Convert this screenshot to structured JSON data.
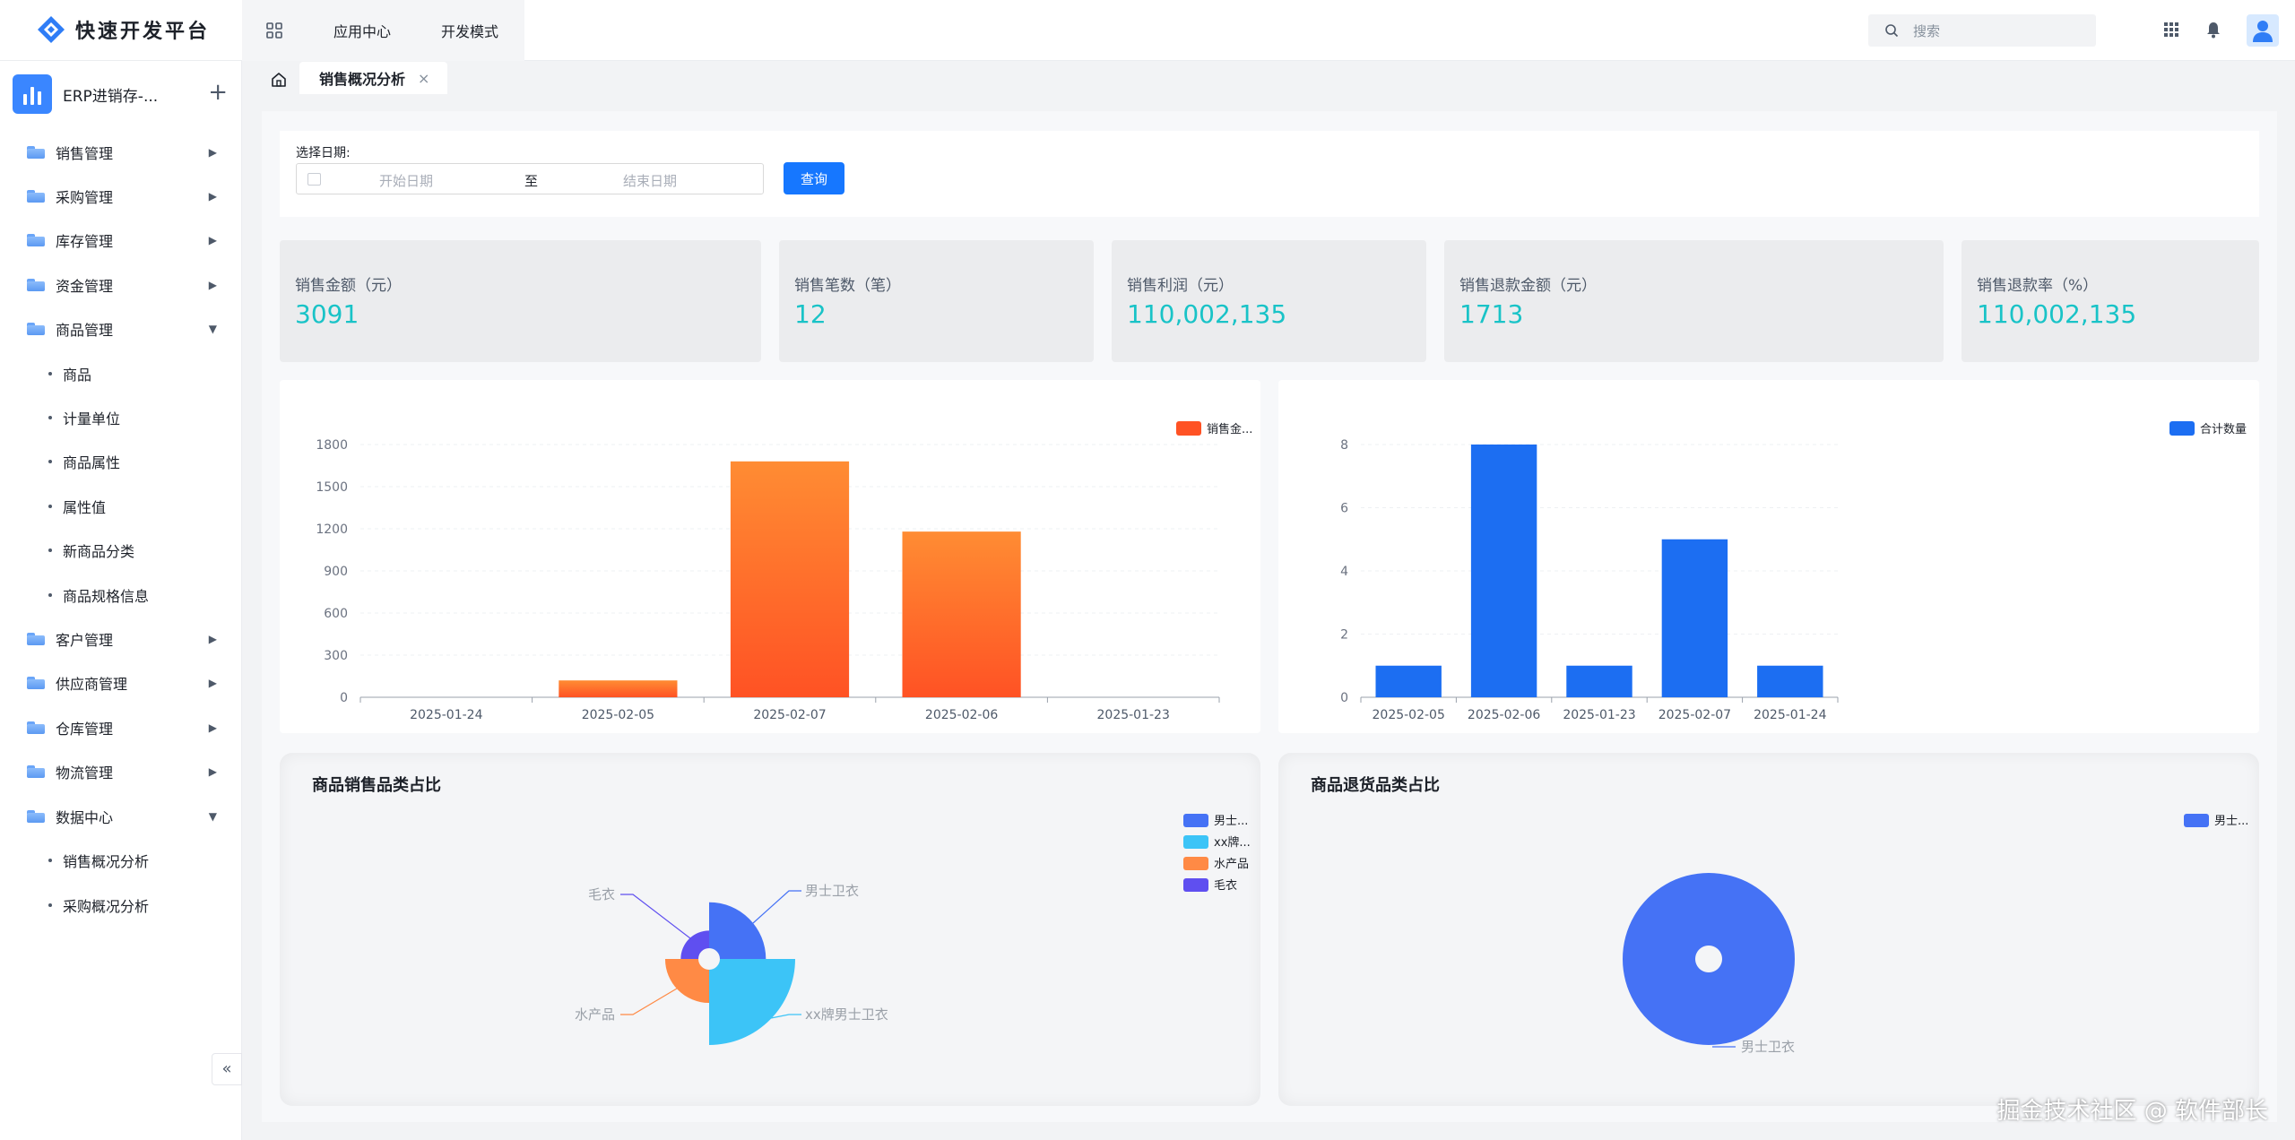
{
  "header": {
    "brand": "快速开发平台",
    "nav": [
      "应用中心",
      "开发模式"
    ],
    "search_placeholder": "搜索"
  },
  "sidebar": {
    "app_name": "ERP进销存-...",
    "menu": [
      {
        "label": "销售管理",
        "expanded": false
      },
      {
        "label": "采购管理",
        "expanded": false
      },
      {
        "label": "库存管理",
        "expanded": false
      },
      {
        "label": "资金管理",
        "expanded": false
      },
      {
        "label": "商品管理",
        "expanded": true
      },
      {
        "label": "客户管理",
        "expanded": false
      },
      {
        "label": "供应商管理",
        "expanded": false
      },
      {
        "label": "仓库管理",
        "expanded": false
      },
      {
        "label": "物流管理",
        "expanded": false
      },
      {
        "label": "数据中心",
        "expanded": true
      }
    ],
    "goods_children": [
      "商品",
      "计量单位",
      "商品属性",
      "属性值",
      "新商品分类",
      "商品规格信息"
    ],
    "data_children": [
      "销售概况分析",
      "采购概况分析"
    ]
  },
  "tabs": {
    "active": "销售概况分析",
    "close": "×"
  },
  "filter": {
    "label": "选择日期:",
    "start_placeholder": "开始日期",
    "separator": "至",
    "end_placeholder": "结束日期",
    "query_button": "查询"
  },
  "stats": [
    {
      "label": "销售金额（元）",
      "value": "3091"
    },
    {
      "label": "销售笔数（笔）",
      "value": "12"
    },
    {
      "label": "销售利润（元）",
      "value": "110,002,135"
    },
    {
      "label": "销售退款金额（元）",
      "value": "1713"
    },
    {
      "label": "销售退款率（%）",
      "value": "110,002,135"
    }
  ],
  "colors": {
    "accent": "#1677ff",
    "stat_value": "#19c3c7",
    "bar_orange_top": "#ff8c33",
    "bar_orange_bottom": "#ff5224",
    "bar_blue": "#1c6ef2"
  },
  "chart_data": [
    {
      "type": "bar",
      "legend": "销售金...",
      "categories": [
        "2025-01-24",
        "2025-02-05",
        "2025-02-07",
        "2025-02-06",
        "2025-01-23"
      ],
      "values": [
        0,
        120,
        1680,
        1180,
        0
      ],
      "ylim": [
        0,
        1800
      ],
      "yticks": [
        0,
        300,
        600,
        900,
        1200,
        1500,
        1800
      ],
      "grid": true,
      "legend_position": "top-right"
    },
    {
      "type": "bar",
      "legend": "合计数量",
      "categories": [
        "2025-02-05",
        "2025-02-06",
        "2025-01-23",
        "2025-02-07",
        "2025-01-24"
      ],
      "values": [
        1,
        8,
        1,
        5,
        1
      ],
      "ylim": [
        0,
        8
      ],
      "yticks": [
        0,
        2,
        4,
        6,
        8
      ],
      "grid": true,
      "legend_position": "top-right"
    },
    {
      "type": "pie",
      "title": "商品销售品类占比",
      "legend": [
        "男士...",
        "xx牌...",
        "水产品",
        "毛衣"
      ],
      "labels": [
        "男士卫衣",
        "xx牌男士卫衣",
        "水产品",
        "毛衣"
      ],
      "values": [
        1.0,
        2.3,
        0.6,
        0.25
      ],
      "colors": [
        "#4572f5",
        "#3cc4f7",
        "#ff8a45",
        "#5f4ff0"
      ],
      "rose": true,
      "legend_position": "top-right"
    },
    {
      "type": "pie",
      "title": "商品退货品类占比",
      "legend": [
        "男士..."
      ],
      "labels": [
        "男士卫衣"
      ],
      "values": [
        1
      ],
      "colors": [
        "#4572f5"
      ],
      "legend_position": "top-right"
    }
  ],
  "watermark": "掘金技术社区 @ 软件部长"
}
